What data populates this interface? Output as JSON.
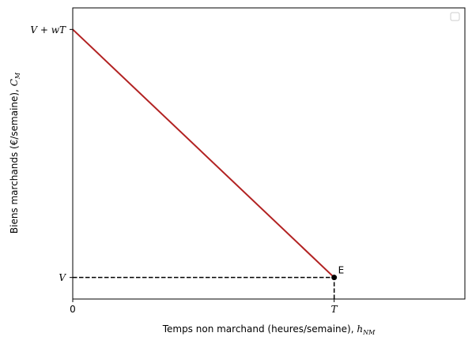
{
  "chart_data": {
    "type": "line",
    "xlabel": "Temps non marchand (heures/semaine), ",
    "xlabel_math": {
      "base": "h",
      "sub": "NM"
    },
    "ylabel": "Biens marchands (€/semaine), ",
    "ylabel_math": {
      "base": "C",
      "sub": "M"
    },
    "xlim": [
      0,
      1.5
    ],
    "ylim": [
      0.9,
      2.25
    ],
    "x_ticks": [
      {
        "value": 0,
        "label": "0"
      },
      {
        "value": 1,
        "label": "T"
      }
    ],
    "y_ticks": [
      {
        "value": 1,
        "label": "V"
      },
      {
        "value": 2.15,
        "label": "V + wT"
      }
    ],
    "series": [
      {
        "color": "#b22222",
        "points": [
          {
            "x": 0,
            "y": 2.15
          },
          {
            "x": 1,
            "y": 1
          }
        ]
      }
    ],
    "reference_lines": [
      {
        "style": "dashed",
        "color": "#000000",
        "points": [
          {
            "x": 0,
            "y": 1
          },
          {
            "x": 1,
            "y": 1
          }
        ]
      },
      {
        "style": "dashed",
        "color": "#000000",
        "points": [
          {
            "x": 1,
            "y": 0.9
          },
          {
            "x": 1,
            "y": 1
          }
        ]
      }
    ],
    "annotations": [
      {
        "label": "E",
        "x": 1,
        "y": 1,
        "marker": "dot"
      }
    ],
    "legend": {
      "placement": "top-right",
      "entries": []
    },
    "grid": false
  }
}
